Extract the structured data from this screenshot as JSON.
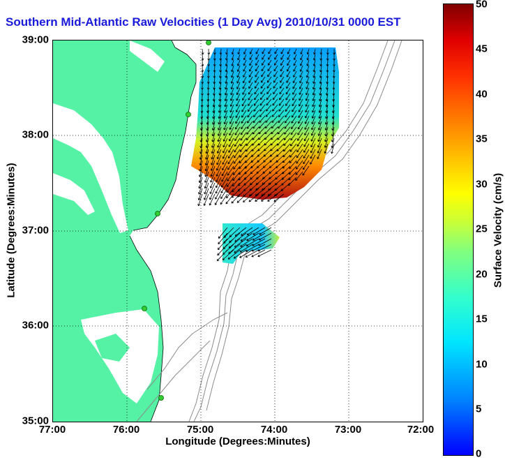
{
  "title": "Southern Mid-Atlantic Raw Velocities (1 Day Avg) 2010/10/31 0000 EST",
  "axes": {
    "xlabel": "Longitude (Degrees:Minutes)",
    "ylabel": "Latitude (Degrees:Minutes)",
    "xticks": [
      "77:00",
      "76:00",
      "75:00",
      "74:00",
      "73:00",
      "72:00"
    ],
    "yticks": [
      "39:00",
      "38:00",
      "37:00",
      "36:00",
      "35:00"
    ]
  },
  "colorbar": {
    "label": "Surface Velocity (cm/s)",
    "ticks": [
      "50",
      "45",
      "40",
      "35",
      "30",
      "25",
      "20",
      "15",
      "10",
      "5",
      "0"
    ],
    "range": [
      0,
      50
    ]
  },
  "colors": {
    "land": "#55f2a6",
    "title_color": "#1a1adc",
    "contour": "#8a8a8a",
    "station": "#33cc33"
  }
}
